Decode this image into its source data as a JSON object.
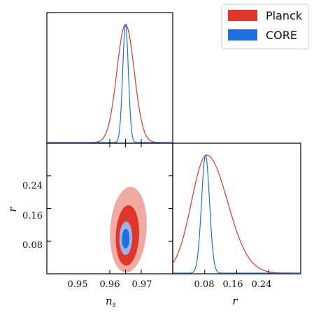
{
  "chart_data": {
    "type": "triangle",
    "legend": {
      "placement": "top-right",
      "entries": [
        {
          "label": "Planck",
          "color": "#e0352b"
        },
        {
          "label": "CORE",
          "color": "#1f6fe0"
        }
      ]
    },
    "parameters": [
      {
        "name": "ns",
        "label_main": "n",
        "label_sub": "s",
        "range": [
          0.91,
          0.99
        ],
        "ticks": [
          "0.95",
          "0.96",
          "0.97"
        ]
      },
      {
        "name": "r",
        "label": "r",
        "range": [
          0.0,
          0.32
        ],
        "ticks": [
          "0.08",
          "0.16",
          "0.24"
        ]
      }
    ],
    "series": [
      {
        "name": "Planck",
        "color": "#e0352b",
        "ns": {
          "mean": 0.96,
          "sigma": 0.0055
        },
        "r": {
          "mode": 0.085,
          "sigma_left": 0.038,
          "sigma_right": 0.052
        },
        "contours": [
          {
            "level": "95%",
            "color": "#f0aaa1",
            "center": [
              0.9618,
              0.108
            ],
            "radii": [
              0.0116,
              0.105
            ],
            "tilt": 0.12
          },
          {
            "level": "68%",
            "color": "#e0352b",
            "center": [
              0.9612,
              0.094
            ],
            "radii": [
              0.0074,
              0.074
            ],
            "tilt": 0.1
          }
        ]
      },
      {
        "name": "CORE",
        "color": "#1f6fe0",
        "ns": {
          "mean": 0.96,
          "sigma": 0.0018
        },
        "r": {
          "mode": 0.082,
          "sigma_left": 0.01,
          "sigma_right": 0.01
        },
        "contours": [
          {
            "level": "95%",
            "color": "#9db2e4",
            "center": [
              0.9602,
              0.087
            ],
            "radii": [
              0.0041,
              0.041
            ],
            "tilt": 0.05
          },
          {
            "level": "68%",
            "color": "#1f6fe0",
            "center": [
              0.9601,
              0.086
            ],
            "radii": [
              0.0024,
              0.024
            ],
            "tilt": 0.05
          }
        ]
      }
    ]
  }
}
